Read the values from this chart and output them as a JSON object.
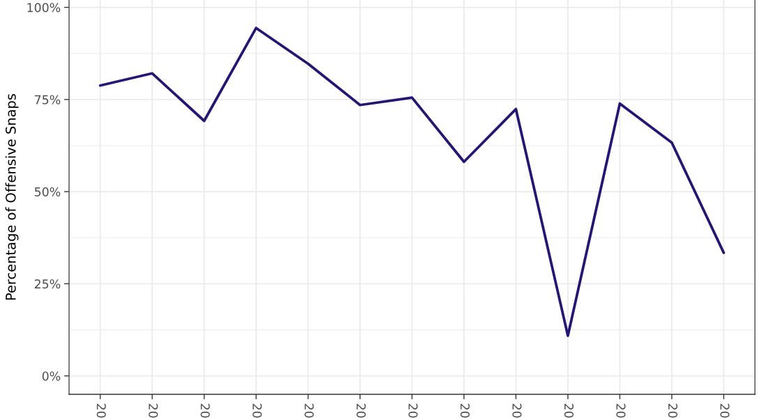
{
  "chart_data": {
    "type": "line",
    "ylabel": "Percentage of Offensive Snaps",
    "categories": [
      "20",
      "20",
      "20",
      "20",
      "20",
      "20",
      "20",
      "20",
      "20",
      "20",
      "20",
      "20",
      "20"
    ],
    "series": [
      {
        "color": "#241773",
        "values": [
          78.8,
          82.1,
          69.2,
          94.4,
          84.7,
          73.5,
          75.5,
          58.1,
          72.4,
          10.9,
          73.9,
          63.3,
          33.4
        ]
      }
    ],
    "ylim": [
      -5,
      102
    ],
    "yticks": [
      {
        "value": 0,
        "label": "0%"
      },
      {
        "value": 25,
        "label": "25%"
      },
      {
        "value": 50,
        "label": "50%"
      },
      {
        "value": 75,
        "label": "75%"
      },
      {
        "value": 100,
        "label": "100%"
      }
    ],
    "grid": true,
    "line_style": "solid"
  }
}
